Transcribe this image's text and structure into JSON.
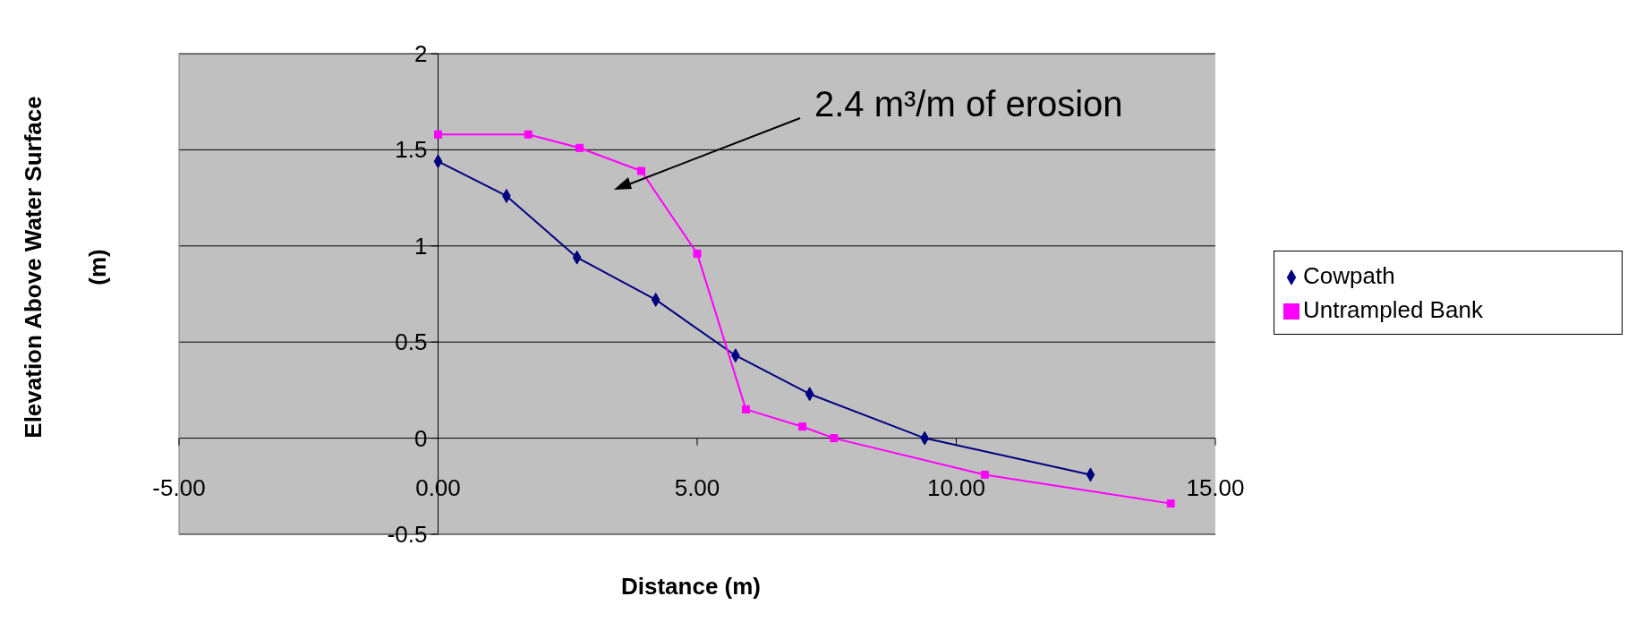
{
  "chart_data": {
    "type": "line",
    "xlabel": "Distance (m)",
    "ylabel": "Elevation Above Water Surface (m)",
    "annotations": [
      "2.4 m³/m of erosion"
    ],
    "xlim": [
      -5,
      15
    ],
    "xticks": [
      {
        "value": -5,
        "label": "-5.00"
      },
      {
        "value": 0,
        "label": "0.00"
      },
      {
        "value": 5,
        "label": "5.00"
      },
      {
        "value": 10,
        "label": "10.00"
      },
      {
        "value": 15,
        "label": "15.00"
      }
    ],
    "ylim": [
      -0.5,
      2
    ],
    "yticks": [
      -0.5,
      0,
      0.5,
      1,
      1.5,
      2
    ],
    "grid": "y",
    "legend": "right",
    "series": [
      {
        "name": "Cowpath",
        "color": "#000080",
        "marker": "diamond",
        "x": [
          0,
          1.32,
          2.68,
          4.2,
          5.74,
          7.17,
          9.39,
          12.59
        ],
        "values": [
          1.44,
          1.26,
          0.94,
          0.72,
          0.43,
          0.23,
          0,
          -0.19
        ]
      },
      {
        "name": "Untrampled Bank",
        "color": "#ff00ff",
        "marker": "square",
        "x": [
          0,
          1.74,
          2.73,
          3.92,
          5,
          5.94,
          7.03,
          7.64,
          10.55,
          14.14
        ],
        "values": [
          1.58,
          1.58,
          1.51,
          1.39,
          0.96,
          0.15,
          0.06,
          0,
          -0.19,
          -0.34
        ]
      }
    ]
  }
}
